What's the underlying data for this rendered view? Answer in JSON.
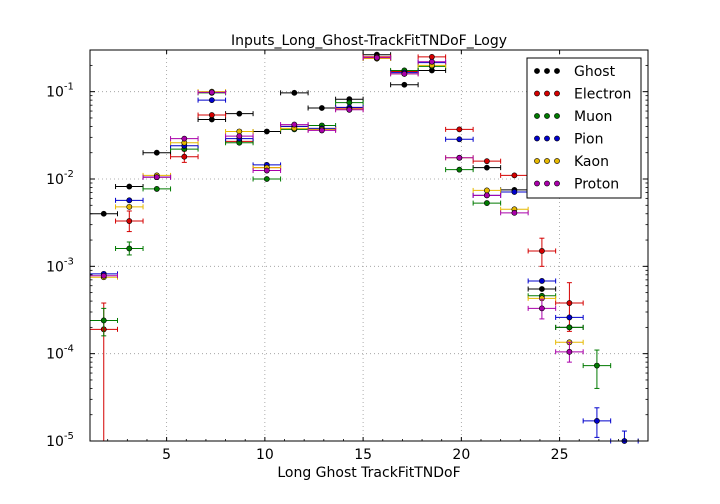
{
  "chart_data": {
    "type": "scatter",
    "title": "Inputs_Long_Ghost-TrackFitTNDoF_Logy",
    "xlabel": "Long Ghost TrackFitTNDoF",
    "ylabel": "",
    "xlim": [
      1.1,
      29.5
    ],
    "ylim": [
      1e-05,
      0.3
    ],
    "yscale": "log",
    "grid": true,
    "legend_position": "top-right",
    "x_ticks": [
      {
        "v": 5,
        "label": "5"
      },
      {
        "v": 10,
        "label": "10"
      },
      {
        "v": 15,
        "label": "15"
      },
      {
        "v": 20,
        "label": "20"
      },
      {
        "v": 25,
        "label": "25"
      }
    ],
    "y_ticks": [
      {
        "v": 0.1,
        "base": "10",
        "exp": "-1"
      },
      {
        "v": 0.01,
        "base": "10",
        "exp": "-2"
      },
      {
        "v": 0.001,
        "base": "10",
        "exp": "-3"
      },
      {
        "v": 0.0001,
        "base": "10",
        "exp": "-4"
      },
      {
        "v": 1e-05,
        "base": "10",
        "exp": "-5"
      }
    ],
    "series": [
      {
        "name": "Ghost",
        "color": "#000000",
        "points": [
          {
            "x": 1.8,
            "y": 0.004
          },
          {
            "x": 3.1,
            "y": 0.0082
          },
          {
            "x": 4.5,
            "y": 0.02
          },
          {
            "x": 7.3,
            "y": 0.048
          },
          {
            "x": 8.7,
            "y": 0.056
          },
          {
            "x": 10.1,
            "y": 0.035
          },
          {
            "x": 11.5,
            "y": 0.097
          },
          {
            "x": 12.9,
            "y": 0.065
          },
          {
            "x": 14.3,
            "y": 0.082
          },
          {
            "x": 15.7,
            "y": 0.265
          },
          {
            "x": 17.1,
            "y": 0.12
          },
          {
            "x": 18.5,
            "y": 0.175
          },
          {
            "x": 21.3,
            "y": 0.0135
          },
          {
            "x": 22.7,
            "y": 0.0075
          },
          {
            "x": 24.1,
            "y": 0.00055
          },
          {
            "x": 25.5,
            "y": 0.0002
          }
        ]
      },
      {
        "name": "Electron",
        "color": "#d40000",
        "points": [
          {
            "x": 1.8,
            "y": 0.00019,
            "yerr": [
              1e-05,
              0.00038
            ]
          },
          {
            "x": 3.1,
            "y": 0.0033,
            "yerr": [
              0.0025,
              0.0043
            ]
          },
          {
            "x": 4.5,
            "y": 0.0105
          },
          {
            "x": 5.9,
            "y": 0.018,
            "yerr": [
              0.0155,
              0.021
            ]
          },
          {
            "x": 7.3,
            "y": 0.054
          },
          {
            "x": 8.7,
            "y": 0.027
          },
          {
            "x": 10.1,
            "y": 0.0135
          },
          {
            "x": 11.5,
            "y": 0.04
          },
          {
            "x": 12.9,
            "y": 0.037
          },
          {
            "x": 14.3,
            "y": 0.065
          },
          {
            "x": 15.7,
            "y": 0.25
          },
          {
            "x": 17.1,
            "y": 0.17
          },
          {
            "x": 18.5,
            "y": 0.25
          },
          {
            "x": 19.9,
            "y": 0.037
          },
          {
            "x": 21.3,
            "y": 0.016
          },
          {
            "x": 22.7,
            "y": 0.011
          },
          {
            "x": 24.1,
            "y": 0.0015,
            "yerr": [
              0.001,
              0.0021
            ]
          },
          {
            "x": 25.5,
            "y": 0.00038,
            "yerr": [
              0.00018,
              0.00065
            ]
          }
        ]
      },
      {
        "name": "Muon",
        "color": "#007a00",
        "points": [
          {
            "x": 1.8,
            "y": 0.00024,
            "yerr": [
              0.00016,
              0.00033
            ]
          },
          {
            "x": 3.1,
            "y": 0.0016,
            "yerr": [
              0.00135,
              0.0019
            ]
          },
          {
            "x": 4.5,
            "y": 0.0077
          },
          {
            "x": 5.9,
            "y": 0.022
          },
          {
            "x": 7.3,
            "y": 0.097
          },
          {
            "x": 8.7,
            "y": 0.026
          },
          {
            "x": 10.1,
            "y": 0.01
          },
          {
            "x": 11.5,
            "y": 0.037
          },
          {
            "x": 12.9,
            "y": 0.041
          },
          {
            "x": 14.3,
            "y": 0.075
          },
          {
            "x": 15.7,
            "y": 0.24
          },
          {
            "x": 17.1,
            "y": 0.175
          },
          {
            "x": 18.5,
            "y": 0.195
          },
          {
            "x": 19.9,
            "y": 0.0128
          },
          {
            "x": 21.3,
            "y": 0.0053
          },
          {
            "x": 24.1,
            "y": 0.00046
          },
          {
            "x": 25.5,
            "y": 0.0002
          },
          {
            "x": 26.9,
            "y": 7.3e-05,
            "yerr": [
              4e-05,
              0.00011
            ]
          }
        ]
      },
      {
        "name": "Pion",
        "color": "#0000cc",
        "points": [
          {
            "x": 1.8,
            "y": 0.00082
          },
          {
            "x": 3.1,
            "y": 0.0057
          },
          {
            "x": 4.5,
            "y": 0.0105
          },
          {
            "x": 5.9,
            "y": 0.024
          },
          {
            "x": 7.3,
            "y": 0.08
          },
          {
            "x": 8.7,
            "y": 0.029
          },
          {
            "x": 10.1,
            "y": 0.0145
          },
          {
            "x": 11.5,
            "y": 0.04
          },
          {
            "x": 12.9,
            "y": 0.038
          },
          {
            "x": 14.3,
            "y": 0.066
          },
          {
            "x": 15.7,
            "y": 0.24
          },
          {
            "x": 17.1,
            "y": 0.165
          },
          {
            "x": 18.5,
            "y": 0.215
          },
          {
            "x": 19.9,
            "y": 0.0285
          },
          {
            "x": 21.3,
            "y": 0.0065
          },
          {
            "x": 22.7,
            "y": 0.0071
          },
          {
            "x": 24.1,
            "y": 0.00068
          },
          {
            "x": 25.5,
            "y": 0.00026
          },
          {
            "x": 26.9,
            "y": 1.7e-05,
            "yerr": [
              1.1e-05,
              2.4e-05
            ]
          },
          {
            "x": 28.3,
            "y": 1e-05,
            "yerr": [
              6e-06,
              1.3e-05
            ]
          }
        ]
      },
      {
        "name": "Kaon",
        "color": "#e6b800",
        "points": [
          {
            "x": 1.8,
            "y": 0.00075
          },
          {
            "x": 3.1,
            "y": 0.0048
          },
          {
            "x": 4.5,
            "y": 0.011
          },
          {
            "x": 5.9,
            "y": 0.026
          },
          {
            "x": 7.3,
            "y": 0.1
          },
          {
            "x": 8.7,
            "y": 0.035
          },
          {
            "x": 10.1,
            "y": 0.0135
          },
          {
            "x": 11.5,
            "y": 0.038
          },
          {
            "x": 12.9,
            "y": 0.037
          },
          {
            "x": 14.3,
            "y": 0.063
          },
          {
            "x": 15.7,
            "y": 0.24
          },
          {
            "x": 17.1,
            "y": 0.16
          },
          {
            "x": 18.5,
            "y": 0.2
          },
          {
            "x": 19.9,
            "y": 0.0175
          },
          {
            "x": 21.3,
            "y": 0.0074
          },
          {
            "x": 22.7,
            "y": 0.0045
          },
          {
            "x": 24.1,
            "y": 0.00043
          },
          {
            "x": 25.5,
            "y": 0.000135
          }
        ]
      },
      {
        "name": "Proton",
        "color": "#aa00aa",
        "points": [
          {
            "x": 1.8,
            "y": 0.00078
          },
          {
            "x": 4.5,
            "y": 0.0105
          },
          {
            "x": 5.9,
            "y": 0.029
          },
          {
            "x": 7.3,
            "y": 0.098
          },
          {
            "x": 8.7,
            "y": 0.031
          },
          {
            "x": 10.1,
            "y": 0.0125
          },
          {
            "x": 11.5,
            "y": 0.042
          },
          {
            "x": 12.9,
            "y": 0.036
          },
          {
            "x": 14.3,
            "y": 0.062
          },
          {
            "x": 15.7,
            "y": 0.245
          },
          {
            "x": 17.1,
            "y": 0.16
          },
          {
            "x": 18.5,
            "y": 0.22
          },
          {
            "x": 19.9,
            "y": 0.0175
          },
          {
            "x": 21.3,
            "y": 0.0065
          },
          {
            "x": 22.7,
            "y": 0.0041
          },
          {
            "x": 24.1,
            "y": 0.00033,
            "yerr": [
              0.00025,
              0.00042
            ]
          },
          {
            "x": 25.5,
            "y": 0.000105,
            "yerr": [
              8e-05,
              0.000135
            ]
          }
        ]
      }
    ]
  }
}
